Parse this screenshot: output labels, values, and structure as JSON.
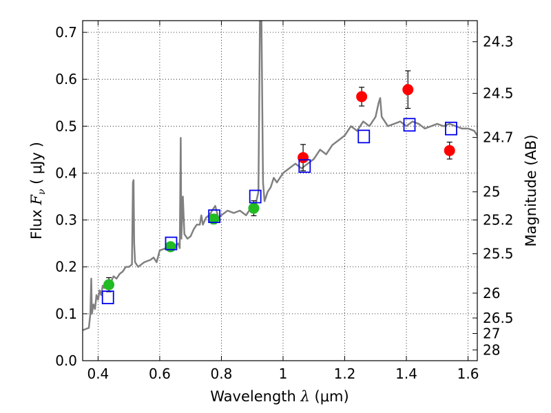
{
  "chart_data": {
    "type": "scatter",
    "title": "",
    "xlabel": "Wavelength  λ (μm)",
    "ylabel": "Flux  Fν  ( μJy )",
    "ylabel_parts": {
      "pre": "Flux  ",
      "math": "F",
      "sub": "ν",
      "post": "  ( μJy )"
    },
    "xlabel_parts": {
      "pre": "Wavelength  ",
      "math": "λ",
      "post": " (μm)"
    },
    "y2label": "Magnitude (AB)",
    "xlim": [
      0.35,
      1.63
    ],
    "ylim": [
      0.0,
      0.725
    ],
    "grid": true,
    "x_ticks": [
      {
        "v": 0.4,
        "label": "0.4"
      },
      {
        "v": 0.6,
        "label": "0.6"
      },
      {
        "v": 0.8,
        "label": "0.8"
      },
      {
        "v": 1.0,
        "label": "1"
      },
      {
        "v": 1.2,
        "label": "1.2"
      },
      {
        "v": 1.4,
        "label": "1.4"
      },
      {
        "v": 1.6,
        "label": "1.6"
      }
    ],
    "y_ticks": [
      {
        "v": 0.0,
        "label": "0.0"
      },
      {
        "v": 0.1,
        "label": "0.1"
      },
      {
        "v": 0.2,
        "label": "0.2"
      },
      {
        "v": 0.3,
        "label": "0.3"
      },
      {
        "v": 0.4,
        "label": "0.4"
      },
      {
        "v": 0.5,
        "label": "0.5"
      },
      {
        "v": 0.6,
        "label": "0.6"
      },
      {
        "v": 0.7,
        "label": "0.7"
      }
    ],
    "y2_ticks": [
      {
        "label": "24.3",
        "flux": 0.68
      },
      {
        "label": "24.5",
        "flux": 0.57
      },
      {
        "label": "24.7",
        "flux": 0.476
      },
      {
        "label": "25",
        "flux": 0.36
      },
      {
        "label": "25.2",
        "flux": 0.3
      },
      {
        "label": "25.5",
        "flux": 0.228
      },
      {
        "label": "26",
        "flux": 0.144
      },
      {
        "label": "26.5",
        "flux": 0.091
      },
      {
        "label": "27",
        "flux": 0.058
      },
      {
        "label": "28",
        "flux": 0.023
      }
    ],
    "series": [
      {
        "marker": "line",
        "color": "#808080",
        "x": [
          0.35,
          0.37,
          0.375,
          0.378,
          0.38,
          0.385,
          0.39,
          0.395,
          0.4,
          0.405,
          0.41,
          0.415,
          0.42,
          0.43,
          0.44,
          0.45,
          0.46,
          0.47,
          0.48,
          0.49,
          0.5,
          0.51,
          0.513,
          0.515,
          0.517,
          0.52,
          0.53,
          0.55,
          0.57,
          0.58,
          0.59,
          0.6,
          0.62,
          0.64,
          0.65,
          0.66,
          0.665,
          0.668,
          0.67,
          0.675,
          0.68,
          0.69,
          0.7,
          0.71,
          0.72,
          0.73,
          0.735,
          0.74,
          0.75,
          0.76,
          0.77,
          0.78,
          0.79,
          0.8,
          0.82,
          0.84,
          0.86,
          0.88,
          0.9,
          0.91,
          0.92,
          0.925,
          0.93,
          0.935,
          0.94,
          0.95,
          0.96,
          0.97,
          0.98,
          1.0,
          1.02,
          1.04,
          1.06,
          1.08,
          1.1,
          1.12,
          1.14,
          1.16,
          1.18,
          1.2,
          1.22,
          1.24,
          1.26,
          1.28,
          1.3,
          1.31,
          1.315,
          1.32,
          1.33,
          1.34,
          1.36,
          1.38,
          1.4,
          1.42,
          1.44,
          1.46,
          1.48,
          1.5,
          1.52,
          1.54,
          1.56,
          1.58,
          1.6,
          1.62,
          1.63
        ],
        "y": [
          0.065,
          0.07,
          0.1,
          0.175,
          0.1,
          0.12,
          0.11,
          0.14,
          0.13,
          0.15,
          0.14,
          0.16,
          0.155,
          0.17,
          0.165,
          0.18,
          0.175,
          0.185,
          0.19,
          0.2,
          0.2,
          0.205,
          0.38,
          0.385,
          0.25,
          0.21,
          0.2,
          0.21,
          0.215,
          0.22,
          0.21,
          0.235,
          0.24,
          0.24,
          0.245,
          0.25,
          0.24,
          0.475,
          0.26,
          0.35,
          0.27,
          0.26,
          0.265,
          0.28,
          0.29,
          0.29,
          0.31,
          0.29,
          0.305,
          0.31,
          0.32,
          0.33,
          0.305,
          0.31,
          0.32,
          0.315,
          0.32,
          0.31,
          0.33,
          0.33,
          0.36,
          0.725,
          0.725,
          0.38,
          0.34,
          0.36,
          0.37,
          0.39,
          0.38,
          0.4,
          0.41,
          0.42,
          0.41,
          0.42,
          0.43,
          0.45,
          0.44,
          0.46,
          0.47,
          0.48,
          0.5,
          0.49,
          0.51,
          0.5,
          0.52,
          0.55,
          0.56,
          0.52,
          0.51,
          0.5,
          0.505,
          0.51,
          0.5,
          0.51,
          0.505,
          0.495,
          0.5,
          0.505,
          0.5,
          0.505,
          0.5,
          0.495,
          0.495,
          0.49,
          0.48
        ]
      },
      {
        "marker": "circle",
        "color": "#22bb22",
        "x": [
          0.435,
          0.635,
          0.775,
          0.905
        ],
        "y": [
          0.162,
          0.243,
          0.302,
          0.325
        ],
        "err": [
          0.015,
          0.008,
          0.01,
          0.016
        ]
      },
      {
        "marker": "circle",
        "color": "#ff0000",
        "x": [
          1.065,
          1.255,
          1.405,
          1.54
        ],
        "y": [
          0.433,
          0.563,
          0.578,
          0.448
        ],
        "err": [
          0.028,
          0.02,
          0.04,
          0.018
        ]
      },
      {
        "marker": "square",
        "color": "#0000ee",
        "x": [
          0.432,
          0.637,
          0.777,
          0.91,
          1.07,
          1.262,
          1.41,
          1.545
        ],
        "y": [
          0.135,
          0.25,
          0.308,
          0.35,
          0.415,
          0.478,
          0.503,
          0.495
        ]
      }
    ]
  }
}
